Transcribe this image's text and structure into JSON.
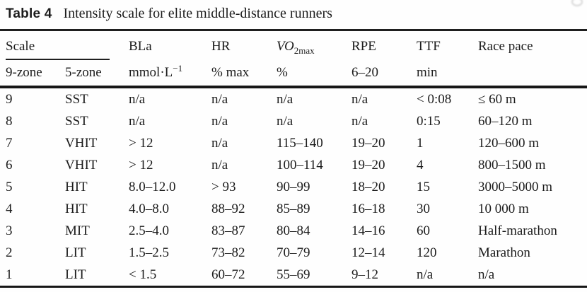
{
  "caption": {
    "label": "Table 4",
    "text": "Intensity scale for elite middle-distance runners"
  },
  "table": {
    "header": {
      "scale": "Scale",
      "bla": "BLa",
      "hr": "HR",
      "vo2_italic": "VO",
      "vo2_sub": "2max",
      "rpe": "RPE",
      "ttf": "TTF",
      "race_pace": "Race pace"
    },
    "subheader": {
      "zone9": "9-zone",
      "zone5": "5-zone",
      "bla_unit_base": "mmol·L",
      "bla_unit_sup": "−1",
      "hr_unit": "% max",
      "vo2_unit": "%",
      "rpe_unit": "6–20",
      "ttf_unit": "min",
      "race_unit": ""
    },
    "rows": [
      [
        "9",
        "SST",
        "n/a",
        "n/a",
        "n/a",
        "n/a",
        "< 0:08",
        "≤ 60 m"
      ],
      [
        "8",
        "SST",
        "n/a",
        "n/a",
        "n/a",
        "n/a",
        "0:15",
        "60–120 m"
      ],
      [
        "7",
        "VHIT",
        "> 12",
        "n/a",
        "115–140",
        "19–20",
        "1",
        "120–600 m"
      ],
      [
        "6",
        "VHIT",
        "> 12",
        "n/a",
        "100–114",
        "19–20",
        "4",
        "800–1500 m"
      ],
      [
        "5",
        "HIT",
        "8.0–12.0",
        "> 93",
        "90–99",
        "18–20",
        "15",
        "3000–5000 m"
      ],
      [
        "4",
        "HIT",
        "4.0–8.0",
        "88–92",
        "85–89",
        "16–18",
        "30",
        "10 000 m"
      ],
      [
        "3",
        "MIT",
        "2.5–4.0",
        "83–87",
        "80–84",
        "14–16",
        "60",
        "Half-marathon"
      ],
      [
        "2",
        "LIT",
        "1.5–2.5",
        "73–82",
        "70–79",
        "12–14",
        "120",
        "Marathon"
      ],
      [
        "1",
        "LIT",
        "< 1.5",
        "60–72",
        "55–69",
        "9–12",
        "n/a",
        "n/a"
      ]
    ],
    "text_color": "#1c1c1c",
    "rule_color": "#1f1f1f"
  }
}
